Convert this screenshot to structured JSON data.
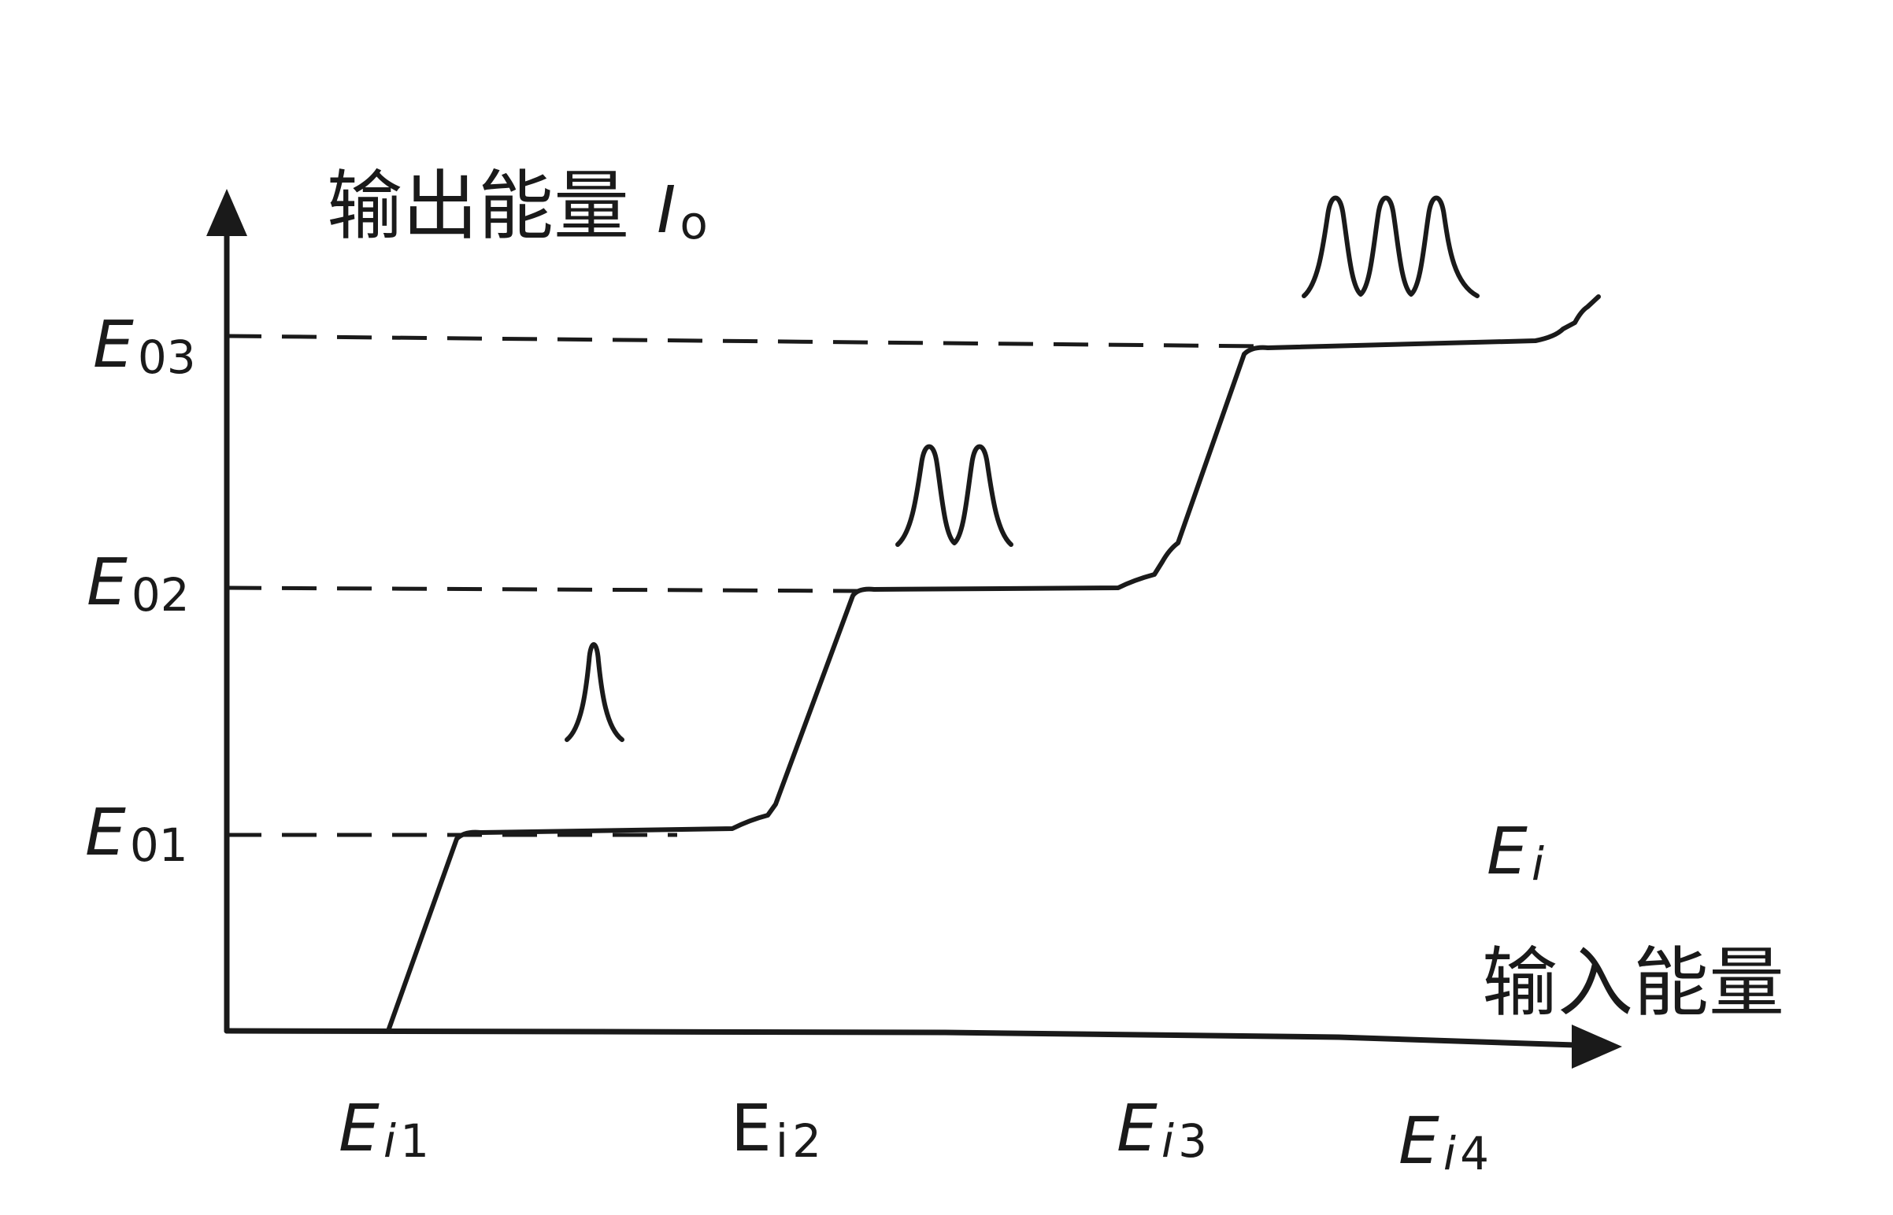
{
  "y_axis": {
    "label": "输出能量",
    "symbol": "I",
    "symbol_sub": "o"
  },
  "x_axis": {
    "label": "输入能量",
    "symbol": "E",
    "symbol_sub": "i"
  },
  "output_levels": [
    {
      "symbol": "E",
      "sub": "01"
    },
    {
      "symbol": "E",
      "sub": "02"
    },
    {
      "symbol": "E",
      "sub": "03"
    }
  ],
  "input_thresholds": [
    {
      "symbol": "E",
      "sub_var": "i",
      "sub_num": "1",
      "sub_italic": true
    },
    {
      "symbol": "E",
      "sub_var": "i",
      "sub_num": "2",
      "sub_italic": false
    },
    {
      "symbol": "E",
      "sub_var": "i",
      "sub_num": "3",
      "sub_italic": true
    },
    {
      "symbol": "E",
      "sub_var": "i",
      "sub_num": "4",
      "sub_italic": true
    }
  ],
  "pulse_counts": [
    1,
    2,
    3
  ]
}
